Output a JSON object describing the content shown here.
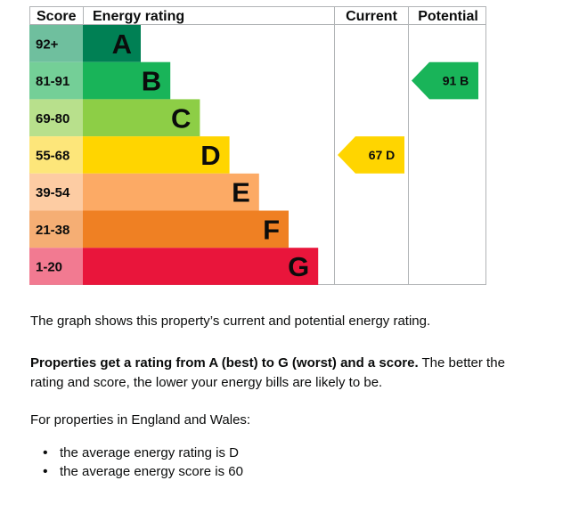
{
  "chart_data": {
    "type": "bar",
    "headers": {
      "score": "Score",
      "rating": "Energy rating",
      "current": "Current",
      "potential": "Potential"
    },
    "bands": [
      {
        "score": "92+",
        "letter": "A",
        "color": "#008054",
        "score_bg": "#6fbf9e"
      },
      {
        "score": "81-91",
        "letter": "B",
        "color": "#19b459",
        "score_bg": "#74cf97"
      },
      {
        "score": "69-80",
        "letter": "C",
        "color": "#8dce46",
        "score_bg": "#b8e08c"
      },
      {
        "score": "55-68",
        "letter": "D",
        "color": "#ffd500",
        "score_bg": "#fde67a"
      },
      {
        "score": "39-54",
        "letter": "E",
        "color": "#fcaa65",
        "score_bg": "#fdcca3"
      },
      {
        "score": "21-38",
        "letter": "F",
        "color": "#ef8023",
        "score_bg": "#f5ae74"
      },
      {
        "score": "1-20",
        "letter": "G",
        "color": "#e9153b",
        "score_bg": "#f27a91"
      }
    ],
    "current": {
      "value": 67,
      "letter": "D",
      "label": "67  D"
    },
    "potential": {
      "value": 91,
      "letter": "B",
      "label": "91  B"
    }
  },
  "text": {
    "intro": "The graph shows this property’s current and potential energy rating.",
    "rating_bold": "Properties get a rating from A (best) to G (worst) and a score.",
    "rating_rest": " The better the rating and score, the lower your energy bills are likely to be.",
    "regions": "For properties in England and Wales:",
    "bullets": [
      "the average energy rating is D",
      "the average energy score is 60"
    ]
  }
}
